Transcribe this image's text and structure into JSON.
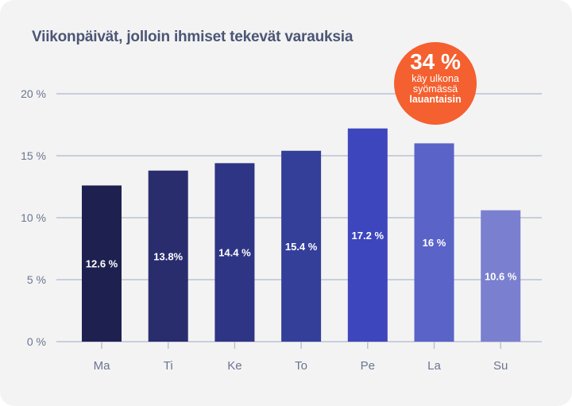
{
  "chart_data": {
    "type": "bar",
    "title": "Viikonpäivät, jolloin ihmiset tekevät varauksia",
    "categories": [
      "Ma",
      "Ti",
      "Ke",
      "To",
      "Pe",
      "La",
      "Su"
    ],
    "values": [
      12.6,
      13.8,
      14.4,
      15.4,
      17.2,
      16,
      10.6
    ],
    "data_labels": [
      "12.6 %",
      "13.8%",
      "14.4 %",
      "15.4 %",
      "17.2 %",
      "16 %",
      "10.6 %"
    ],
    "yticks": [
      0,
      5,
      10,
      15,
      20
    ],
    "ytick_labels": [
      "0 %",
      "5 %",
      "10 %",
      "15 %",
      "20 %"
    ],
    "ylim": [
      0,
      20
    ],
    "grid": true,
    "colors": [
      "#1e2150",
      "#292d6e",
      "#2e3584",
      "#343f9a",
      "#3d46bd",
      "#5a63c8",
      "#7a80cf"
    ]
  },
  "callout": {
    "value": "34 %",
    "line1": "käy ulkona",
    "line2": "syömässä",
    "line3": "lauantaisin",
    "color": "#f4602f"
  }
}
